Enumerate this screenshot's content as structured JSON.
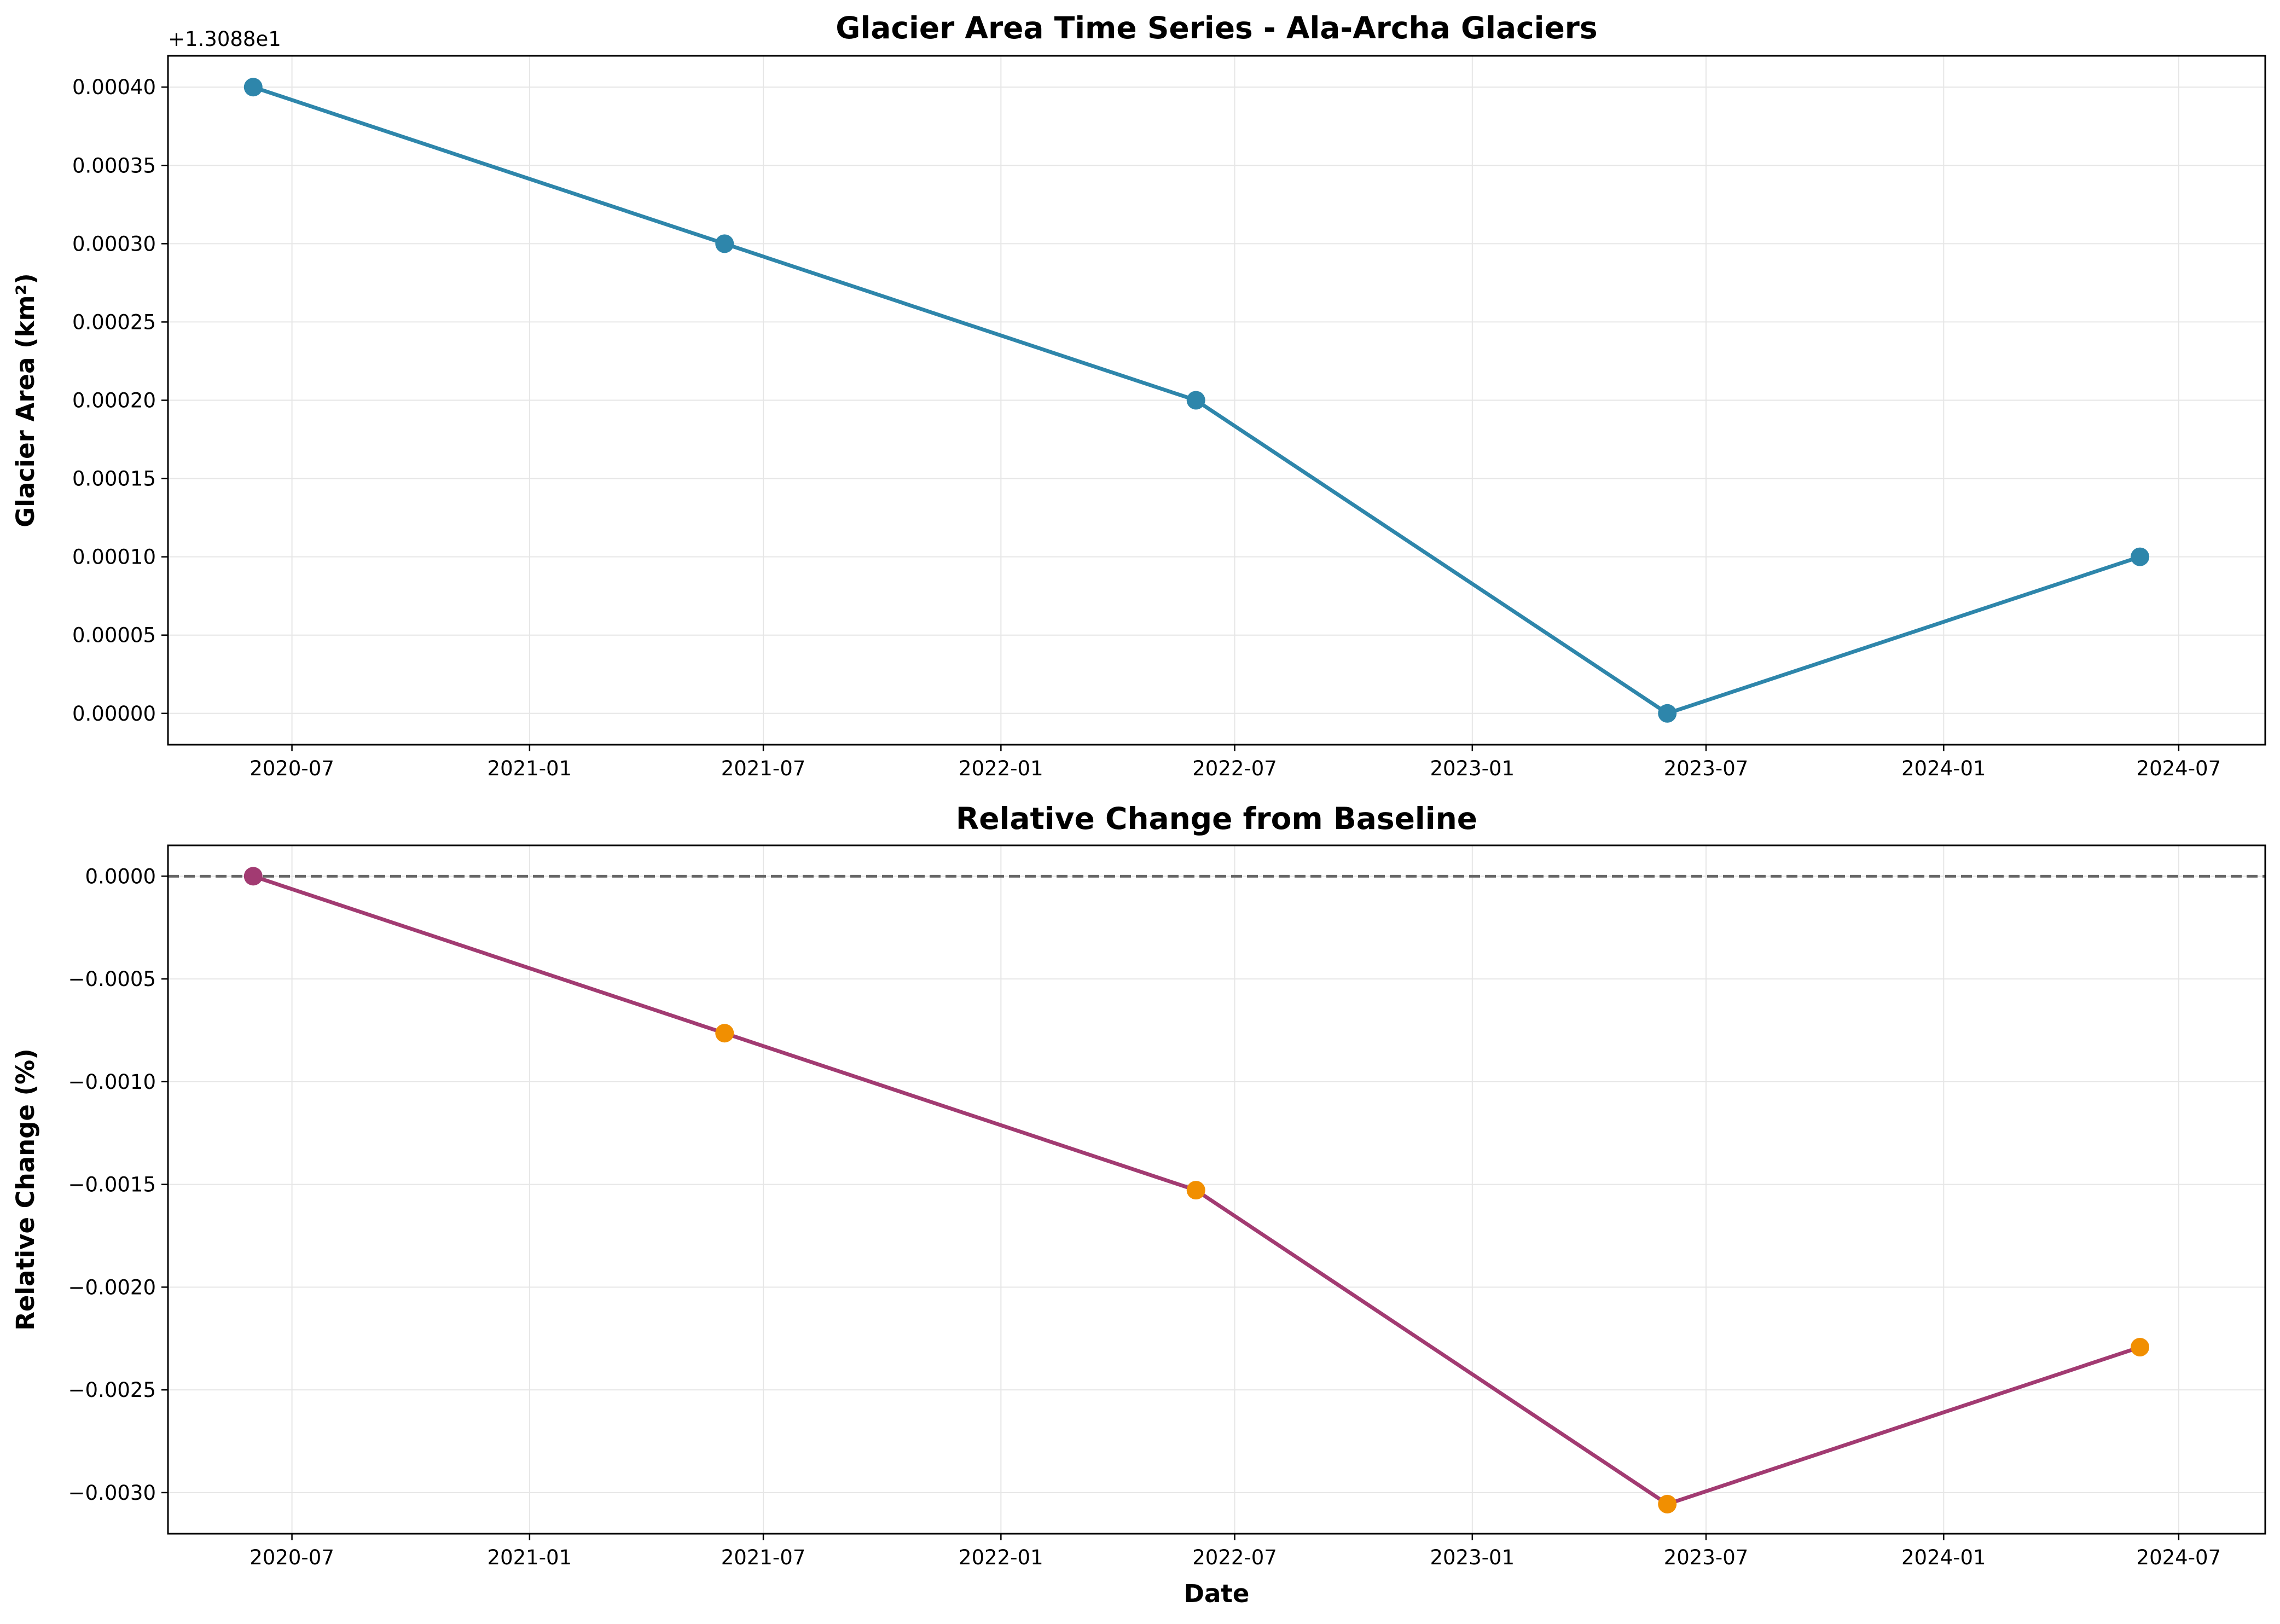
{
  "colors": {
    "area_line": "#2E86AB",
    "relative_line": "#A23B72",
    "relative_marker_baseline": "#A23B72",
    "relative_marker": "#F18F01",
    "baseline_dash": "#666666",
    "grid": "#e6e6e6"
  },
  "chart_data": [
    {
      "type": "line",
      "title": "Glacier Area Time Series - Ala-Archa Glaciers",
      "xlabel": "",
      "ylabel": "Glacier Area (km²)",
      "offset_text": "+1.3088e1",
      "grid": true,
      "x": [
        "2020-06-01",
        "2021-06-01",
        "2022-06-01",
        "2023-06-01",
        "2024-06-01"
      ],
      "x_ticks": [
        "2020-07",
        "2021-01",
        "2021-07",
        "2022-01",
        "2022-07",
        "2023-01",
        "2023-07",
        "2024-01",
        "2024-07"
      ],
      "x_tick_dates": [
        "2020-07-01",
        "2021-01-01",
        "2021-07-01",
        "2022-01-01",
        "2022-07-01",
        "2023-01-01",
        "2023-07-01",
        "2024-01-01",
        "2024-07-01"
      ],
      "xlim": [
        "2020-03-27",
        "2024-09-06"
      ],
      "series": [
        {
          "values": [
            13.0884,
            13.0883,
            13.0882,
            13.088,
            13.0881
          ]
        }
      ],
      "y_ticks": [
        0.0,
        5e-05,
        0.0001,
        0.00015,
        0.0002,
        0.00025,
        0.0003,
        0.00035,
        0.0004
      ],
      "y_tick_labels": [
        "0.00000",
        "0.00005",
        "0.00010",
        "0.00015",
        "0.00020",
        "0.00025",
        "0.00030",
        "0.00035",
        "0.00040"
      ],
      "ylim": [
        -2e-05,
        0.00042
      ]
    },
    {
      "type": "line",
      "title": "Relative Change from Baseline",
      "xlabel": "Date",
      "ylabel": "Relative Change (%)",
      "grid": true,
      "baseline": 0,
      "x": [
        "2020-06-01",
        "2021-06-01",
        "2022-06-01",
        "2023-06-01",
        "2024-06-01"
      ],
      "x_ticks": [
        "2020-07",
        "2021-01",
        "2021-07",
        "2022-01",
        "2022-07",
        "2023-01",
        "2023-07",
        "2024-01",
        "2024-07"
      ],
      "x_tick_dates": [
        "2020-07-01",
        "2021-01-01",
        "2021-07-01",
        "2022-01-01",
        "2022-07-01",
        "2023-01-01",
        "2023-07-01",
        "2024-01-01",
        "2024-07-01"
      ],
      "xlim": [
        "2020-03-27",
        "2024-09-06"
      ],
      "series": [
        {
          "values": [
            0.0,
            -0.000764,
            -0.001528,
            -0.003056,
            -0.002292
          ]
        }
      ],
      "y_ticks": [
        0.0,
        -0.0005,
        -0.001,
        -0.0015,
        -0.002,
        -0.0025,
        -0.003
      ],
      "y_tick_labels": [
        "0.0000",
        "−0.0005",
        "−0.0010",
        "−0.0015",
        "−0.0020",
        "−0.0025",
        "−0.0030"
      ],
      "ylim": [
        -0.0032,
        0.00015
      ]
    }
  ]
}
